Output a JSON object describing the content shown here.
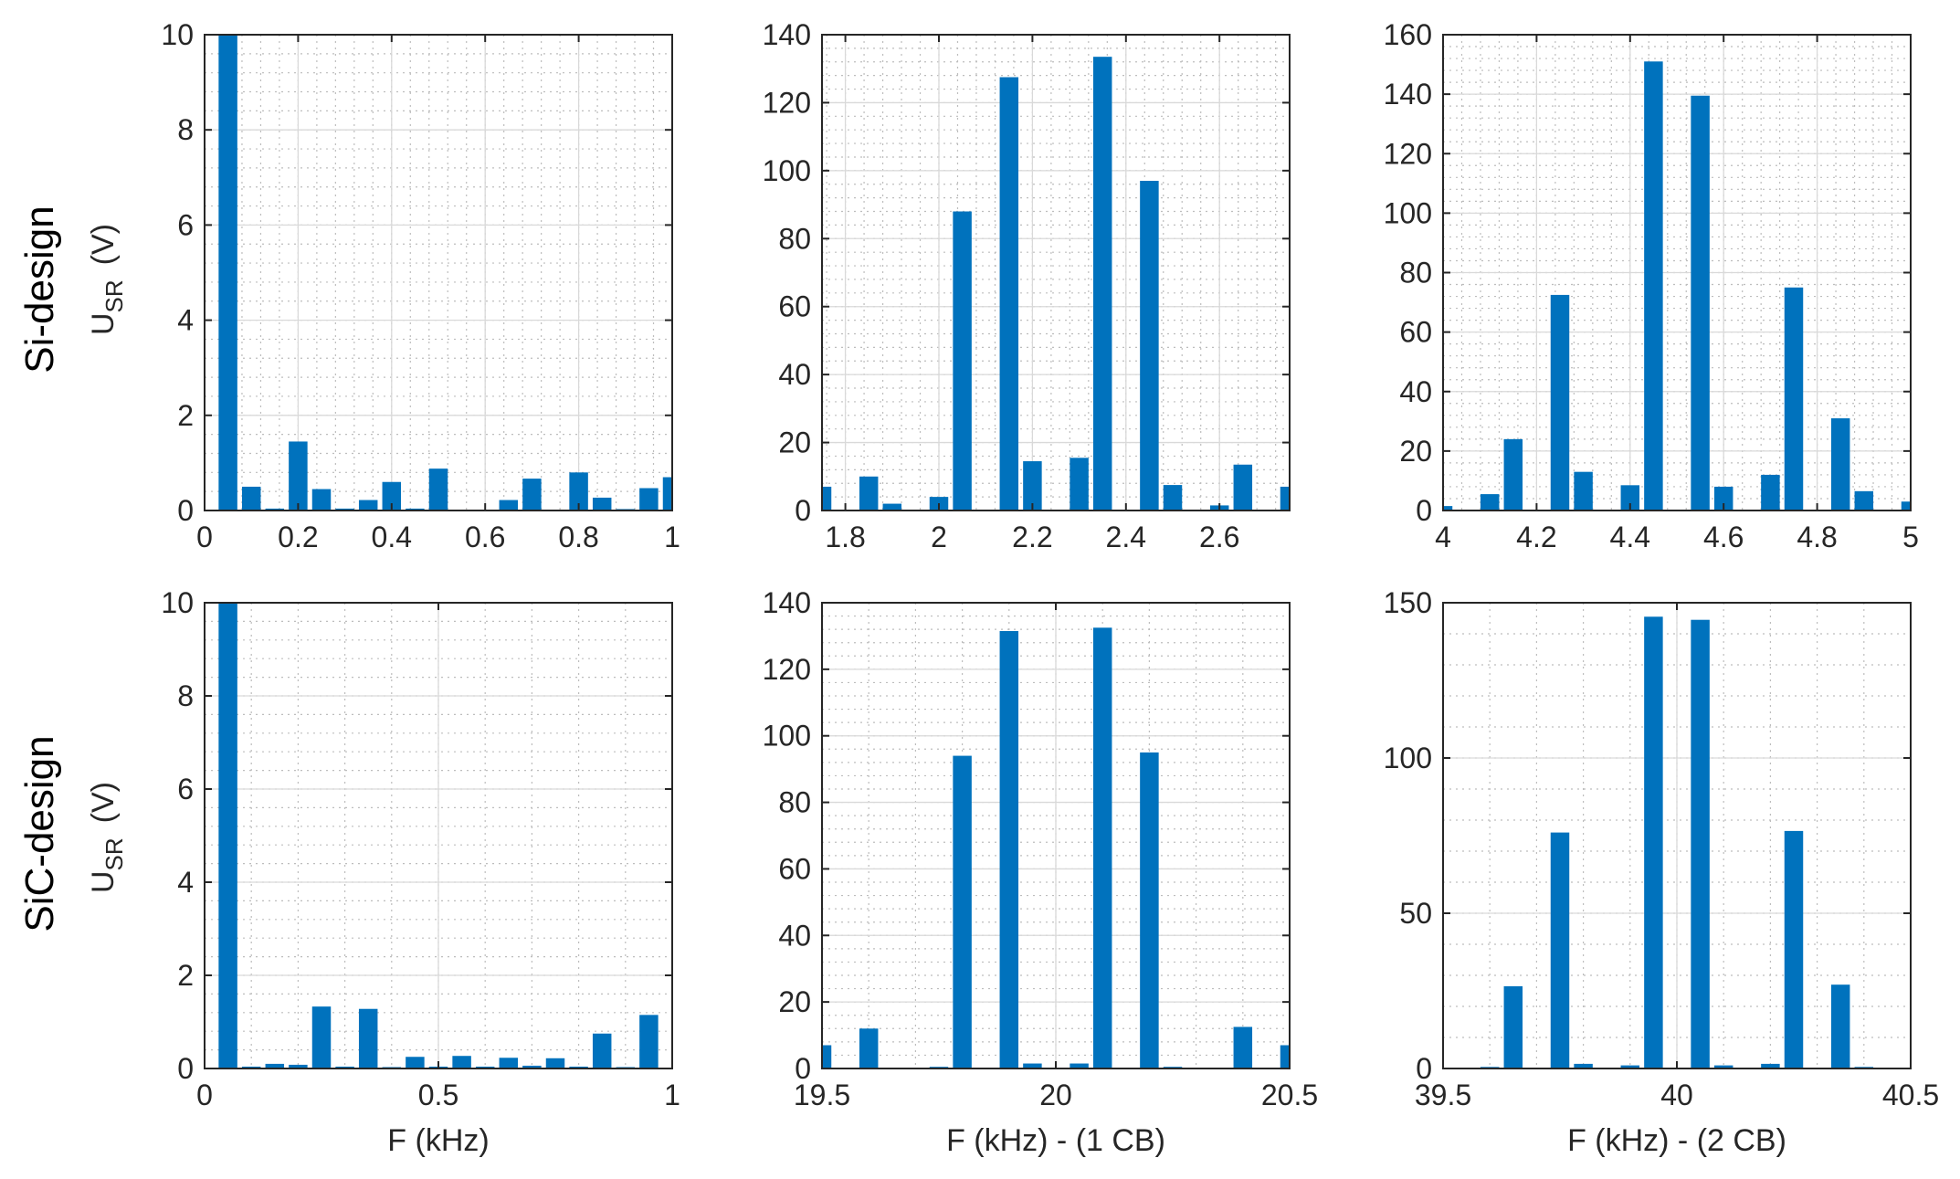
{
  "row_labels": [
    "Si-design",
    "SiC-design"
  ],
  "y_label": {
    "main": "U",
    "sub": "SR",
    "unit": "(V)"
  },
  "colors": {
    "bar": "#0072BD",
    "axis": "#262626",
    "grid": "#d9d9d9"
  },
  "chart_data": [
    {
      "type": "bar",
      "row": 0,
      "col": 0,
      "title": "",
      "xlabel": "",
      "ylabel": "U_SR (V)",
      "xlim": [
        0,
        1
      ],
      "ylim": [
        0,
        10
      ],
      "xticks": [
        0,
        0.2,
        0.4,
        0.6,
        0.8,
        1
      ],
      "xtick_labels": [
        "0",
        "0.2",
        "0.4",
        "0.6",
        "0.8",
        "1"
      ],
      "yticks": [
        0,
        2,
        4,
        6,
        8,
        10
      ],
      "ytick_labels": [
        "0",
        "2",
        "4",
        "6",
        "8",
        "10"
      ],
      "minor_grid": true,
      "bar_width": 0.04,
      "x": [
        0.05,
        0.1,
        0.15,
        0.2,
        0.25,
        0.3,
        0.35,
        0.4,
        0.45,
        0.5,
        0.55,
        0.6,
        0.65,
        0.7,
        0.75,
        0.8,
        0.85,
        0.9,
        0.95,
        1.0
      ],
      "values": [
        10,
        0.5,
        0.04,
        1.45,
        0.45,
        0.04,
        0.22,
        0.6,
        0.04,
        0.88,
        0,
        0,
        0.22,
        0.67,
        0,
        0.8,
        0.27,
        0.03,
        0.47,
        0.7
      ]
    },
    {
      "type": "bar",
      "row": 0,
      "col": 1,
      "title": "",
      "xlabel": "",
      "ylabel": "",
      "xlim": [
        1.75,
        2.75
      ],
      "ylim": [
        0,
        140
      ],
      "xticks": [
        1.8,
        2,
        2.2,
        2.4,
        2.6
      ],
      "xtick_labels": [
        "1.8",
        "2",
        "2.2",
        "2.4",
        "2.6"
      ],
      "yticks": [
        0,
        20,
        40,
        60,
        80,
        100,
        120,
        140
      ],
      "ytick_labels": [
        "0",
        "20",
        "40",
        "60",
        "80",
        "100",
        "120",
        "140"
      ],
      "minor_grid": true,
      "bar_width": 0.04,
      "x": [
        1.75,
        1.85,
        1.9,
        2.0,
        2.05,
        2.15,
        2.2,
        2.3,
        2.35,
        2.45,
        2.5,
        2.6,
        2.65,
        2.75
      ],
      "values": [
        7,
        10,
        2,
        4,
        88,
        127.5,
        14.5,
        15.5,
        133.5,
        97,
        7.5,
        1.5,
        13.5,
        7
      ]
    },
    {
      "type": "bar",
      "row": 0,
      "col": 2,
      "title": "",
      "xlabel": "",
      "ylabel": "",
      "xlim": [
        4,
        5
      ],
      "ylim": [
        0,
        160
      ],
      "xticks": [
        4,
        4.2,
        4.4,
        4.6,
        4.8,
        5
      ],
      "xtick_labels": [
        "4",
        "4.2",
        "4.4",
        "4.6",
        "4.8",
        "5"
      ],
      "yticks": [
        0,
        20,
        40,
        60,
        80,
        100,
        120,
        140,
        160
      ],
      "ytick_labels": [
        "0",
        "20",
        "40",
        "60",
        "80",
        "100",
        "120",
        "140",
        "160"
      ],
      "minor_grid": true,
      "bar_width": 0.04,
      "x": [
        4.0,
        4.1,
        4.15,
        4.25,
        4.3,
        4.4,
        4.45,
        4.55,
        4.6,
        4.7,
        4.75,
        4.85,
        4.9,
        5.0
      ],
      "values": [
        1.5,
        5.5,
        24,
        72.5,
        13,
        8.5,
        151,
        139.5,
        8,
        12,
        75,
        31,
        6.5,
        3
      ]
    },
    {
      "type": "bar",
      "row": 1,
      "col": 0,
      "title": "",
      "xlabel": "F (kHz)",
      "ylabel": "U_SR (V)",
      "xlim": [
        0,
        1
      ],
      "ylim": [
        0,
        10
      ],
      "xticks": [
        0,
        0.5,
        1
      ],
      "xtick_labels": [
        "0",
        "0.5",
        "1"
      ],
      "yticks": [
        0,
        2,
        4,
        6,
        8,
        10
      ],
      "ytick_labels": [
        "0",
        "2",
        "4",
        "6",
        "8",
        "10"
      ],
      "minor_grid": true,
      "bar_width": 0.04,
      "x": [
        0.05,
        0.1,
        0.15,
        0.2,
        0.25,
        0.3,
        0.35,
        0.4,
        0.45,
        0.5,
        0.55,
        0.6,
        0.65,
        0.7,
        0.75,
        0.8,
        0.85,
        0.9,
        0.95
      ],
      "values": [
        10,
        0.04,
        0.1,
        0.08,
        1.33,
        0.04,
        1.28,
        0.03,
        0.25,
        0.04,
        0.27,
        0.04,
        0.23,
        0.06,
        0.22,
        0.04,
        0.75,
        0.03,
        1.15
      ]
    },
    {
      "type": "bar",
      "row": 1,
      "col": 1,
      "title": "",
      "xlabel": "F (kHz) - (1 CB)",
      "ylabel": "",
      "xlim": [
        19.5,
        20.5
      ],
      "ylim": [
        0,
        140
      ],
      "xticks": [
        19.5,
        20,
        20.5
      ],
      "xtick_labels": [
        "19.5",
        "20",
        "20.5"
      ],
      "yticks": [
        0,
        20,
        40,
        60,
        80,
        100,
        120,
        140
      ],
      "ytick_labels": [
        "0",
        "20",
        "40",
        "60",
        "80",
        "100",
        "120",
        "140"
      ],
      "minor_grid": true,
      "bar_width": 0.04,
      "x": [
        19.5,
        19.6,
        19.75,
        19.8,
        19.9,
        19.95,
        20.05,
        20.1,
        20.2,
        20.25,
        20.4,
        20.5
      ],
      "values": [
        7,
        12,
        0.5,
        94,
        131.5,
        1.5,
        1.5,
        132.5,
        95,
        0.5,
        12.5,
        7
      ]
    },
    {
      "type": "bar",
      "row": 1,
      "col": 2,
      "title": "",
      "xlabel": "F (kHz) - (2 CB)",
      "ylabel": "",
      "xlim": [
        39.5,
        40.5
      ],
      "ylim": [
        0,
        150
      ],
      "xticks": [
        39.5,
        40,
        40.5
      ],
      "xtick_labels": [
        "39.5",
        "40",
        "40.5"
      ],
      "yticks": [
        0,
        50,
        100,
        150
      ],
      "ytick_labels": [
        "0",
        "50",
        "100",
        "150"
      ],
      "minor_grid": true,
      "bar_width": 0.04,
      "x": [
        39.6,
        39.65,
        39.75,
        39.8,
        39.9,
        39.95,
        40.05,
        40.1,
        40.2,
        40.25,
        40.35,
        40.4
      ],
      "values": [
        0.5,
        26.5,
        76,
        1.5,
        1,
        145.5,
        144.5,
        1,
        1.5,
        76.5,
        27,
        0.5
      ]
    }
  ]
}
